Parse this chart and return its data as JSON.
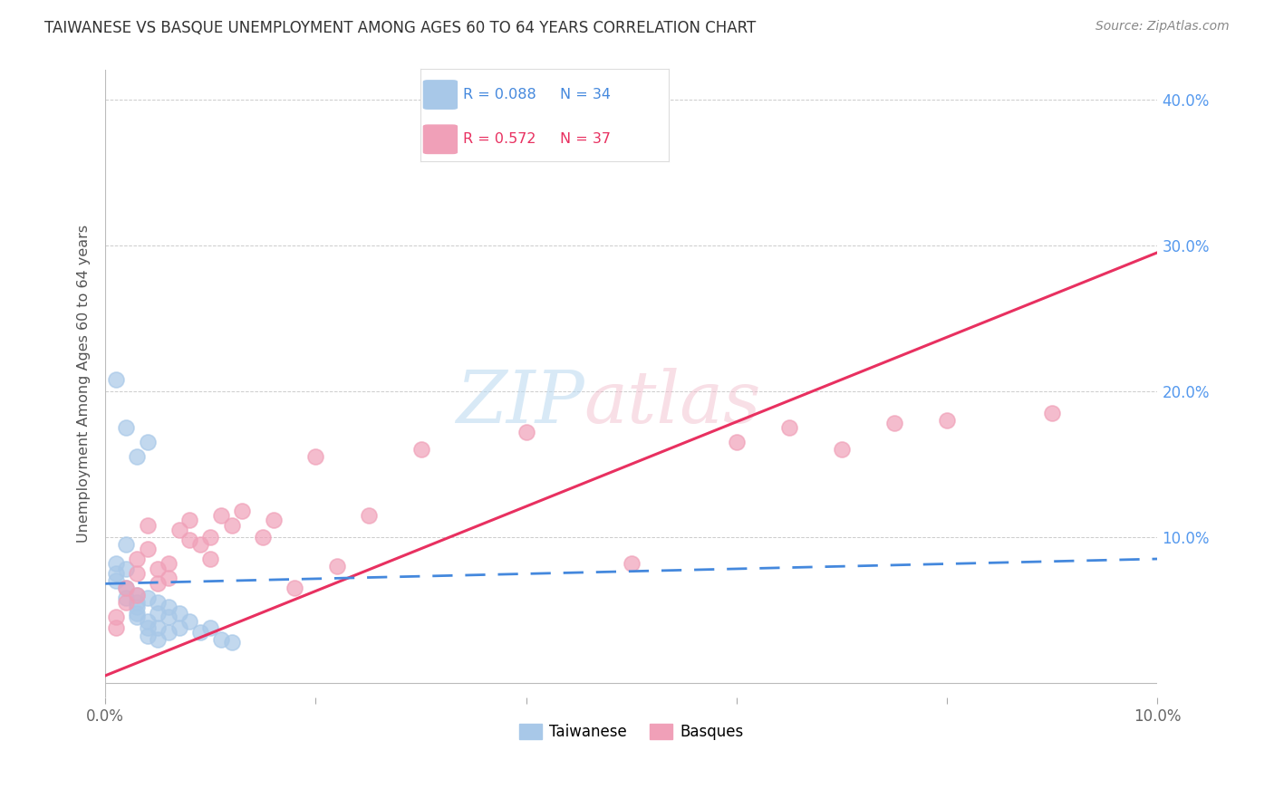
{
  "title": "TAIWANESE VS BASQUE UNEMPLOYMENT AMONG AGES 60 TO 64 YEARS CORRELATION CHART",
  "source": "Source: ZipAtlas.com",
  "ylabel": "Unemployment Among Ages 60 to 64 years",
  "watermark_zip": "ZIP",
  "watermark_atlas": "atlas",
  "xlim": [
    0.0,
    0.1
  ],
  "ylim": [
    -0.01,
    0.42
  ],
  "xticks": [
    0.0,
    0.02,
    0.04,
    0.06,
    0.08,
    0.1
  ],
  "yticks": [
    0.0,
    0.1,
    0.2,
    0.3,
    0.4
  ],
  "xtick_labels": [
    "0.0%",
    "",
    "",
    "",
    "",
    "10.0%"
  ],
  "ytick_labels": [
    "",
    "10.0%",
    "20.0%",
    "30.0%",
    "40.0%"
  ],
  "taiwanese_R": 0.088,
  "taiwanese_N": 34,
  "basque_R": 0.572,
  "basque_N": 37,
  "taiwanese_color": "#a8c8e8",
  "basque_color": "#f0a0b8",
  "taiwanese_line_color": "#4488dd",
  "basque_line_color": "#e83060",
  "background_color": "#ffffff",
  "grid_color": "#cccccc",
  "taiwanese_x": [
    0.001,
    0.001,
    0.001,
    0.002,
    0.002,
    0.002,
    0.002,
    0.003,
    0.003,
    0.003,
    0.003,
    0.003,
    0.004,
    0.004,
    0.004,
    0.004,
    0.005,
    0.005,
    0.005,
    0.005,
    0.006,
    0.006,
    0.006,
    0.007,
    0.007,
    0.008,
    0.009,
    0.01,
    0.011,
    0.012,
    0.002,
    0.004,
    0.001,
    0.003
  ],
  "taiwanese_y": [
    0.075,
    0.082,
    0.07,
    0.095,
    0.078,
    0.065,
    0.058,
    0.06,
    0.055,
    0.052,
    0.048,
    0.045,
    0.058,
    0.042,
    0.038,
    0.032,
    0.055,
    0.048,
    0.038,
    0.03,
    0.052,
    0.045,
    0.035,
    0.048,
    0.038,
    0.042,
    0.035,
    0.038,
    0.03,
    0.028,
    0.175,
    0.165,
    0.208,
    0.155
  ],
  "basque_x": [
    0.001,
    0.001,
    0.002,
    0.002,
    0.003,
    0.003,
    0.003,
    0.004,
    0.004,
    0.005,
    0.005,
    0.006,
    0.006,
    0.007,
    0.008,
    0.008,
    0.009,
    0.01,
    0.01,
    0.011,
    0.012,
    0.013,
    0.015,
    0.016,
    0.018,
    0.02,
    0.022,
    0.025,
    0.03,
    0.04,
    0.05,
    0.06,
    0.065,
    0.07,
    0.075,
    0.08,
    0.09
  ],
  "basque_y": [
    0.038,
    0.045,
    0.055,
    0.065,
    0.06,
    0.075,
    0.085,
    0.092,
    0.108,
    0.068,
    0.078,
    0.072,
    0.082,
    0.105,
    0.098,
    0.112,
    0.095,
    0.085,
    0.1,
    0.115,
    0.108,
    0.118,
    0.1,
    0.112,
    0.065,
    0.155,
    0.08,
    0.115,
    0.16,
    0.172,
    0.082,
    0.165,
    0.175,
    0.16,
    0.178,
    0.18,
    0.185
  ],
  "tw_line_x": [
    0.0,
    0.1
  ],
  "tw_line_y": [
    0.068,
    0.085
  ],
  "bq_line_x": [
    0.0,
    0.1
  ],
  "bq_line_y": [
    0.005,
    0.295
  ]
}
